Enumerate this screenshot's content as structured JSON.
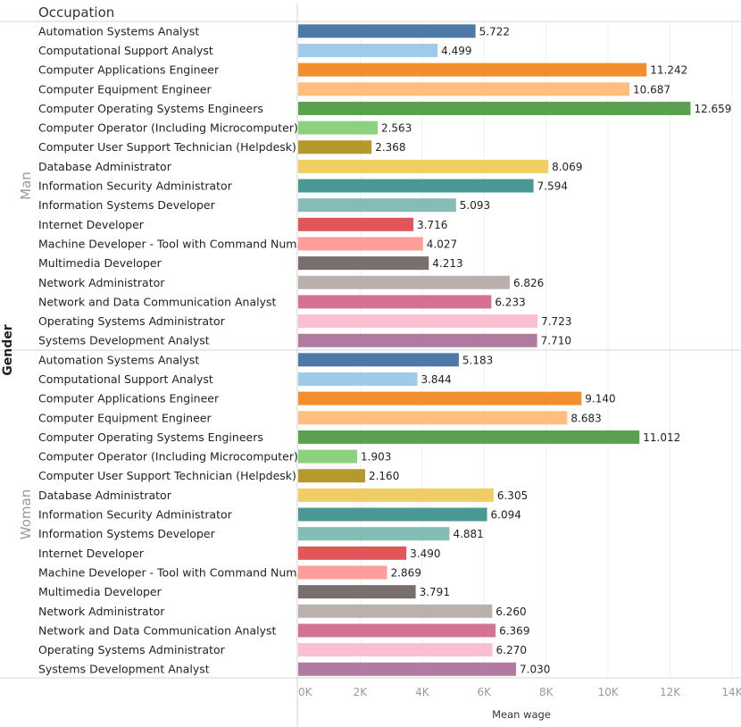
{
  "chart_data": {
    "type": "bar",
    "orientation": "horizontal",
    "row_header": "Occupation",
    "group_header": "Gender",
    "xlabel": "Mean wage",
    "xlim": [
      0,
      14000
    ],
    "xticks": [
      0,
      2000,
      4000,
      6000,
      8000,
      10000,
      12000,
      14000
    ],
    "xtick_labels": [
      "0K",
      "2K",
      "4K",
      "6K",
      "8K",
      "10K",
      "12K",
      "14K"
    ],
    "grid": true,
    "categories": [
      "Automation Systems Analyst",
      "Computational Support Analyst",
      "Computer Applications Engineer",
      "Computer Equipment Engineer",
      "Computer Operating Systems Engineers",
      "Computer Operator (Including Microcomputer)",
      "Computer User Support Technician (Helpdesk)",
      "Database Administrator",
      "Information Security Administrator",
      "Information Systems Developer",
      "Internet Developer",
      "Machine Developer - Tool with Command Num.",
      "Multimedia Developer",
      "Network Administrator",
      "Network and Data Communication Analyst",
      "Operating Systems Administrator",
      "Systems Development Analyst"
    ],
    "colors": [
      "#4e79a7",
      "#a0cbe8",
      "#f28e2b",
      "#ffbe7d",
      "#59a14f",
      "#8cd17d",
      "#b6992d",
      "#f1ce63",
      "#499894",
      "#86bcb6",
      "#e15759",
      "#ff9d9a",
      "#79706e",
      "#bab0ac",
      "#d37295",
      "#fabfd2",
      "#b07aa1"
    ],
    "groups": [
      {
        "name": "Man",
        "values": [
          5722,
          4499,
          11242,
          10687,
          12659,
          2563,
          2368,
          8069,
          7594,
          5093,
          3716,
          4027,
          4213,
          6826,
          6233,
          7723,
          7710
        ],
        "value_labels": [
          "5.722",
          "4.499",
          "11.242",
          "10.687",
          "12.659",
          "2.563",
          "2.368",
          "8.069",
          "7.594",
          "5.093",
          "3.716",
          "4.027",
          "4.213",
          "6.826",
          "6.233",
          "7.723",
          "7.710"
        ]
      },
      {
        "name": "Woman",
        "values": [
          5183,
          3844,
          9140,
          8683,
          11012,
          1903,
          2160,
          6305,
          6094,
          4881,
          3490,
          2869,
          3791,
          6260,
          6369,
          6270,
          7030
        ],
        "value_labels": [
          "5.183",
          "3.844",
          "9.140",
          "8.683",
          "11.012",
          "1.903",
          "2.160",
          "6.305",
          "6.094",
          "4.881",
          "3.490",
          "2.869",
          "3.791",
          "6.260",
          "6.369",
          "6.270",
          "7.030"
        ]
      }
    ]
  }
}
